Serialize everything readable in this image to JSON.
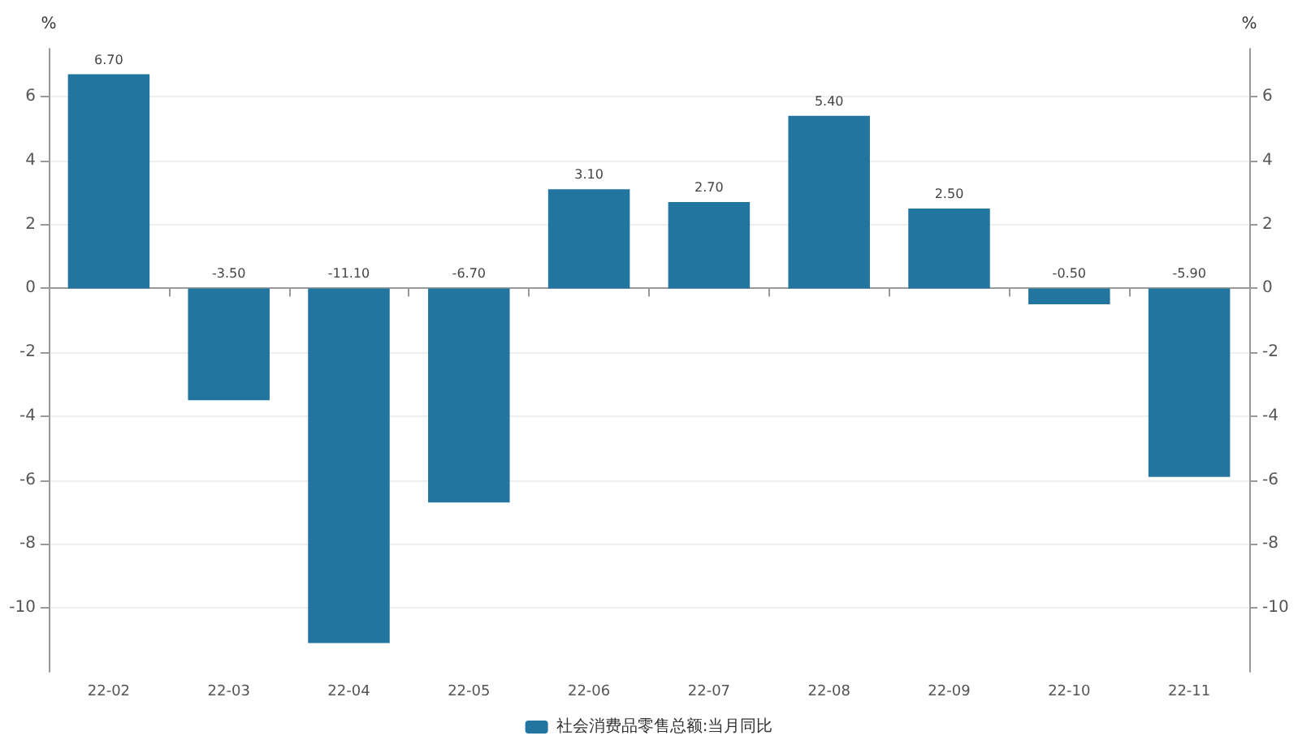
{
  "chart_data": {
    "type": "bar",
    "ylabel": "%",
    "y2label": "%",
    "categories": [
      "22-02",
      "22-03",
      "22-04",
      "22-05",
      "22-06",
      "22-07",
      "22-08",
      "22-09",
      "22-10",
      "22-11"
    ],
    "series": [
      {
        "name": "社会消费品零售总额:当月同比",
        "color": "#21759f",
        "values": [
          6.7,
          -3.5,
          -11.1,
          -6.7,
          3.1,
          2.7,
          5.4,
          2.5,
          -0.5,
          -5.9
        ],
        "value_labels": [
          "6.70",
          "-3.50",
          "-11.10",
          "-6.70",
          "3.10",
          "2.70",
          "5.40",
          "2.50",
          "-0.50",
          "-5.90"
        ]
      }
    ],
    "ylim": [
      -12,
      7.5
    ],
    "yticks": [
      -10,
      -8,
      -6,
      -4,
      -2,
      0,
      2,
      4,
      6
    ],
    "y2lim": [
      -12,
      7.5
    ],
    "y2ticks": [
      -10,
      -8,
      -6,
      -4,
      -2,
      0,
      2,
      4,
      6
    ],
    "grid": "y",
    "legend": "bottom"
  }
}
